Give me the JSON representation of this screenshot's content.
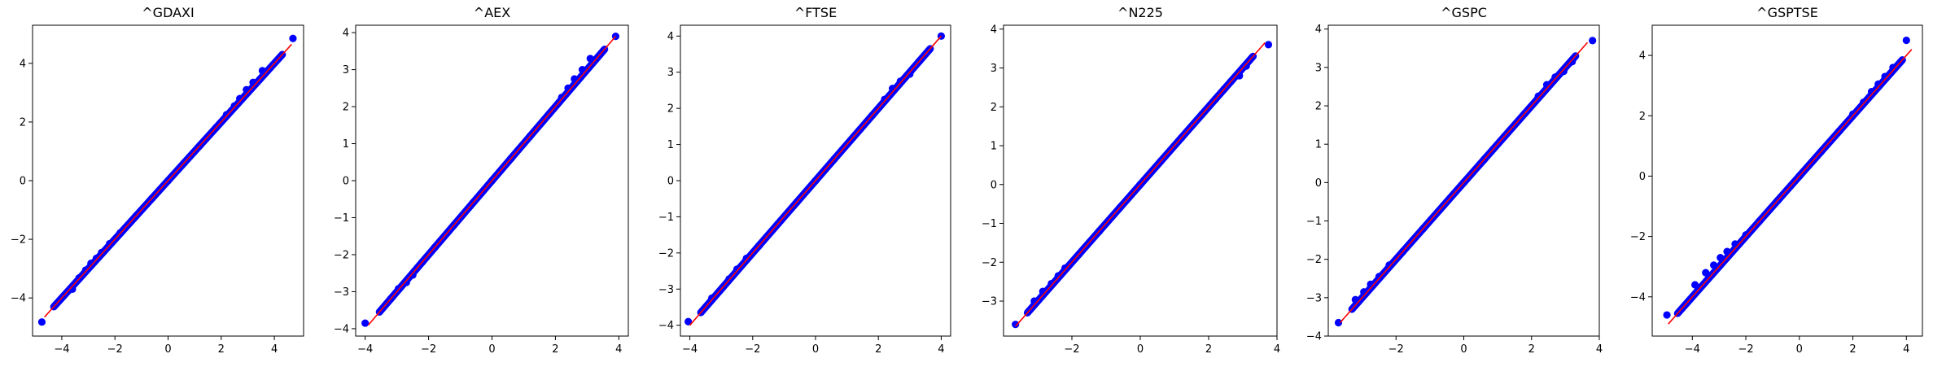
{
  "colors": {
    "points": "#0000ff",
    "line": "#ff0000",
    "axes": "#000000",
    "background": "#ffffff"
  },
  "chart_data": [
    {
      "type": "scatter",
      "title": "^GDAXI",
      "xlabel": "",
      "ylabel": "",
      "grid": false,
      "xlim": [
        -5.1,
        5.1
      ],
      "ylim": [
        -5.3,
        5.3
      ],
      "xticks": [
        -4,
        -2,
        0,
        2,
        4
      ],
      "yticks": [
        -4,
        -2,
        0,
        2,
        4
      ],
      "fit_line": {
        "x": [
          -4.65,
          4.65
        ],
        "y": [
          -4.65,
          4.65
        ]
      },
      "points": [
        [
          -4.75,
          -4.82
        ],
        [
          -3.6,
          -3.7
        ],
        [
          -3.35,
          -3.32
        ],
        [
          -3.1,
          -3.05
        ],
        [
          -2.9,
          -2.82
        ],
        [
          -2.7,
          -2.65
        ],
        [
          -2.5,
          -2.45
        ],
        [
          -2.2,
          -2.15
        ],
        [
          -1.8,
          -1.78
        ],
        [
          -1.2,
          -1.2
        ],
        [
          -0.6,
          -0.6
        ],
        [
          0,
          0
        ],
        [
          0.6,
          0.6
        ],
        [
          1.2,
          1.2
        ],
        [
          1.8,
          1.8
        ],
        [
          2.2,
          2.25
        ],
        [
          2.5,
          2.55
        ],
        [
          2.7,
          2.8
        ],
        [
          2.95,
          3.1
        ],
        [
          3.2,
          3.35
        ],
        [
          3.55,
          3.75
        ],
        [
          4.7,
          4.85
        ]
      ]
    },
    {
      "type": "scatter",
      "title": "^AEX",
      "xlabel": "",
      "ylabel": "",
      "grid": false,
      "xlim": [
        -4.3,
        4.3
      ],
      "ylim": [
        -4.2,
        4.2
      ],
      "xticks": [
        -4,
        -2,
        0,
        2,
        4
      ],
      "yticks": [
        -4,
        -3,
        -2,
        -1,
        0,
        1,
        2,
        3,
        4
      ],
      "fit_line": {
        "x": [
          -3.9,
          3.9
        ],
        "y": [
          -3.9,
          3.9
        ]
      },
      "points": [
        [
          -4.0,
          -3.85
        ],
        [
          -3.2,
          -3.2
        ],
        [
          -2.95,
          -2.92
        ],
        [
          -2.7,
          -2.75
        ],
        [
          -2.5,
          -2.55
        ],
        [
          -2.2,
          -2.2
        ],
        [
          -1.8,
          -1.8
        ],
        [
          -1.2,
          -1.2
        ],
        [
          -0.6,
          -0.6
        ],
        [
          0,
          0
        ],
        [
          0.6,
          0.6
        ],
        [
          1.2,
          1.2
        ],
        [
          1.8,
          1.8
        ],
        [
          2.2,
          2.25
        ],
        [
          2.4,
          2.5
        ],
        [
          2.6,
          2.75
        ],
        [
          2.85,
          3.0
        ],
        [
          3.1,
          3.3
        ],
        [
          3.9,
          3.9
        ]
      ]
    },
    {
      "type": "scatter",
      "title": "^FTSE",
      "xlabel": "",
      "ylabel": "",
      "grid": false,
      "xlim": [
        -4.3,
        4.3
      ],
      "ylim": [
        -4.3,
        4.3
      ],
      "xticks": [
        -4,
        -2,
        0,
        2,
        4
      ],
      "yticks": [
        -4,
        -3,
        -2,
        -1,
        0,
        1,
        2,
        3,
        4
      ],
      "fit_line": {
        "x": [
          -4.0,
          4.0
        ],
        "y": [
          -4.0,
          4.0
        ]
      },
      "points": [
        [
          -4.05,
          -3.9
        ],
        [
          -3.3,
          -3.25
        ],
        [
          -2.95,
          -2.95
        ],
        [
          -2.75,
          -2.72
        ],
        [
          -2.5,
          -2.45
        ],
        [
          -2.2,
          -2.15
        ],
        [
          -1.8,
          -1.8
        ],
        [
          -1.2,
          -1.2
        ],
        [
          -0.6,
          -0.6
        ],
        [
          0,
          0
        ],
        [
          0.6,
          0.6
        ],
        [
          1.2,
          1.2
        ],
        [
          1.8,
          1.8
        ],
        [
          2.2,
          2.25
        ],
        [
          2.45,
          2.55
        ],
        [
          2.7,
          2.75
        ],
        [
          3.0,
          2.95
        ],
        [
          3.3,
          3.3
        ],
        [
          4.0,
          4.0
        ]
      ]
    },
    {
      "type": "scatter",
      "title": "^N225",
      "xlabel": "",
      "ylabel": "",
      "grid": false,
      "xlim": [
        -4.0,
        4.0
      ],
      "ylim": [
        -3.9,
        4.1
      ],
      "xticks": [
        -2,
        0,
        2,
        4
      ],
      "yticks": [
        -3,
        -2,
        -1,
        0,
        1,
        2,
        3,
        4
      ],
      "fit_line": {
        "x": [
          -3.65,
          3.65
        ],
        "y": [
          -3.65,
          3.65
        ]
      },
      "points": [
        [
          -3.65,
          -3.6
        ],
        [
          -3.1,
          -3.0
        ],
        [
          -2.85,
          -2.75
        ],
        [
          -2.6,
          -2.55
        ],
        [
          -2.4,
          -2.35
        ],
        [
          -2.2,
          -2.15
        ],
        [
          -1.8,
          -1.8
        ],
        [
          -1.2,
          -1.2
        ],
        [
          -0.6,
          -0.6
        ],
        [
          0,
          0
        ],
        [
          0.6,
          0.6
        ],
        [
          1.2,
          1.2
        ],
        [
          1.8,
          1.8
        ],
        [
          2.2,
          2.2
        ],
        [
          2.45,
          2.45
        ],
        [
          2.65,
          2.65
        ],
        [
          2.9,
          2.8
        ],
        [
          3.1,
          3.05
        ],
        [
          3.75,
          3.6
        ]
      ]
    },
    {
      "type": "scatter",
      "title": "^GSPC",
      "xlabel": "",
      "ylabel": "",
      "grid": false,
      "xlim": [
        -4.0,
        4.0
      ],
      "ylim": [
        -4.0,
        4.1
      ],
      "xticks": [
        -2,
        0,
        2,
        4
      ],
      "yticks": [
        -4,
        -3,
        -2,
        -1,
        0,
        1,
        2,
        3,
        4
      ],
      "fit_line": {
        "x": [
          -3.65,
          3.65
        ],
        "y": [
          -3.65,
          3.65
        ]
      },
      "points": [
        [
          -3.7,
          -3.65
        ],
        [
          -3.2,
          -3.05
        ],
        [
          -2.95,
          -2.85
        ],
        [
          -2.75,
          -2.65
        ],
        [
          -2.5,
          -2.45
        ],
        [
          -2.2,
          -2.15
        ],
        [
          -1.8,
          -1.8
        ],
        [
          -1.2,
          -1.2
        ],
        [
          -0.6,
          -0.6
        ],
        [
          0,
          0
        ],
        [
          0.6,
          0.6
        ],
        [
          1.2,
          1.2
        ],
        [
          1.8,
          1.8
        ],
        [
          2.2,
          2.25
        ],
        [
          2.45,
          2.55
        ],
        [
          2.7,
          2.75
        ],
        [
          2.95,
          2.9
        ],
        [
          3.2,
          3.15
        ],
        [
          3.8,
          3.7
        ]
      ]
    },
    {
      "type": "scatter",
      "title": "^GSPTSE",
      "xlabel": "",
      "ylabel": "",
      "grid": false,
      "xlim": [
        -5.5,
        4.6
      ],
      "ylim": [
        -5.3,
        5.0
      ],
      "xticks": [
        -4,
        -2,
        0,
        2,
        4
      ],
      "yticks": [
        -4,
        -2,
        0,
        2,
        4
      ],
      "fit_line": {
        "x": [
          -4.9,
          4.2
        ],
        "y": [
          -4.9,
          4.2
        ]
      },
      "points": [
        [
          -4.95,
          -4.6
        ],
        [
          -3.9,
          -3.6
        ],
        [
          -3.5,
          -3.2
        ],
        [
          -3.2,
          -2.95
        ],
        [
          -2.95,
          -2.7
        ],
        [
          -2.7,
          -2.5
        ],
        [
          -2.4,
          -2.25
        ],
        [
          -2.0,
          -1.95
        ],
        [
          -1.5,
          -1.5
        ],
        [
          -0.8,
          -0.8
        ],
        [
          0,
          0
        ],
        [
          0.8,
          0.8
        ],
        [
          1.5,
          1.5
        ],
        [
          2.0,
          2.05
        ],
        [
          2.4,
          2.45
        ],
        [
          2.7,
          2.8
        ],
        [
          2.95,
          3.05
        ],
        [
          3.2,
          3.3
        ],
        [
          3.5,
          3.6
        ],
        [
          4.0,
          4.5
        ]
      ]
    }
  ]
}
